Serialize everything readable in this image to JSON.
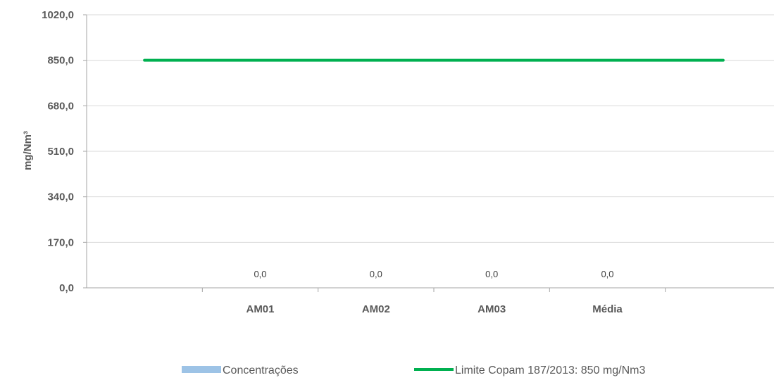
{
  "chart_data": {
    "type": "bar",
    "categories": [
      "",
      "AM01",
      "AM02",
      "AM03",
      "Média",
      ""
    ],
    "series": [
      {
        "name": "Concentrações",
        "type": "bar",
        "values": [
          null,
          0,
          0,
          0,
          0,
          null
        ],
        "data_labels": [
          "",
          "0,0",
          "0,0",
          "0,0",
          "0,0",
          ""
        ]
      },
      {
        "name": "Limite Copam 187/2013: 850 mg/Nm3",
        "type": "line",
        "values": [
          850,
          850,
          850,
          850,
          850,
          850
        ]
      }
    ],
    "ylabel": "mg/Nm³",
    "xlabel": "",
    "ylim": [
      0,
      1020
    ],
    "yticks": [
      0,
      170,
      340,
      510,
      680,
      850,
      1020
    ],
    "ytick_labels": [
      "0,0",
      "170,0",
      "340,0",
      "510,0",
      "680,0",
      "850,0",
      "1020,0"
    ],
    "grid": true,
    "legend_position": "bottom",
    "colors": {
      "bar": "#9DC3E6",
      "line": "#00B050",
      "grid": "#D9D9D9",
      "axis": "#A6A6A6"
    }
  }
}
